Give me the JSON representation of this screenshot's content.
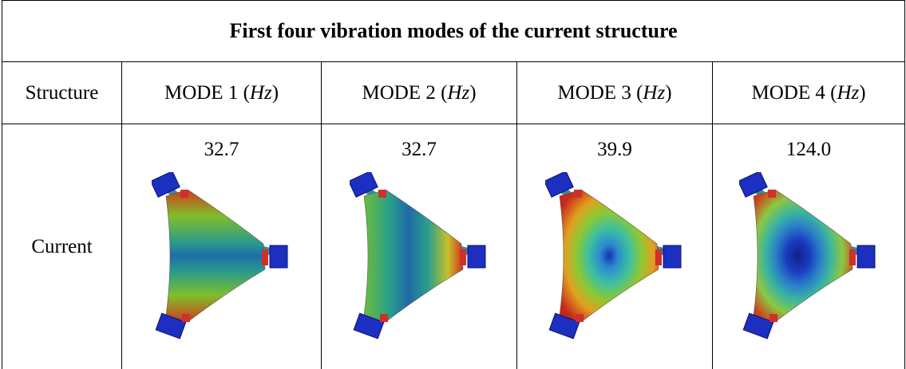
{
  "table": {
    "title": "First four vibration modes of the current structure",
    "header": [
      "Structure",
      {
        "prefix": "MODE 1 (",
        "unit": "Hz",
        "suffix": ")"
      },
      {
        "prefix": "MODE 2 (",
        "unit": "Hz",
        "suffix": ")"
      },
      {
        "prefix": "MODE 3 (",
        "unit": "Hz",
        "suffix": ")"
      },
      {
        "prefix": "MODE 4 (",
        "unit": "Hz",
        "suffix": ")"
      }
    ],
    "rows": [
      [
        "Current",
        "32.7",
        "32.7",
        "39.9",
        "124.0"
      ]
    ]
  }
}
